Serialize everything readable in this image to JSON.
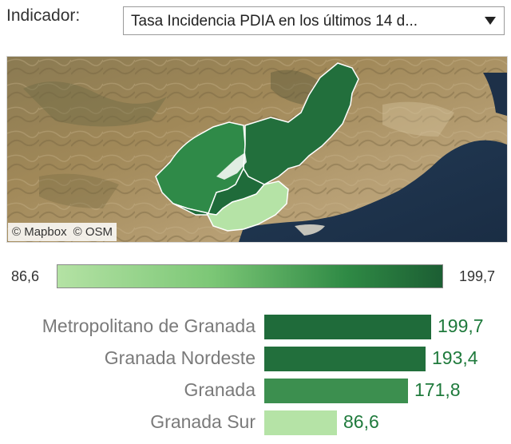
{
  "indicator": {
    "label": "Indicador:",
    "selected": "Tasa Incidencia PDIA en los últimos 14 d..."
  },
  "map": {
    "attribution": [
      "© Mapbox",
      "© OSM"
    ],
    "region_colors": {
      "metropolitano": "#1f6b3a",
      "nordeste": "#226f3c",
      "granada": "#2f8a48",
      "sur": "#b5e3a6"
    }
  },
  "legend": {
    "min_label": "86,6",
    "max_label": "199,7",
    "min": 86.6,
    "max": 199.7,
    "color_low": "#b4e2a4",
    "color_high": "#1c5e33"
  },
  "chart_data": {
    "type": "bar",
    "orientation": "horizontal",
    "categories": [
      "Metropolitano de Granada",
      "Granada Nordeste",
      "Granada",
      "Granada Sur"
    ],
    "values": [
      199.7,
      193.4,
      171.8,
      86.6
    ],
    "value_labels": [
      "199,7",
      "193,4",
      "171,8",
      "86,6"
    ],
    "colors": [
      "#1f6b3a",
      "#226f3c",
      "#3c8f4f",
      "#b5e3a6"
    ],
    "title": "",
    "xlabel": "",
    "ylabel": ""
  }
}
